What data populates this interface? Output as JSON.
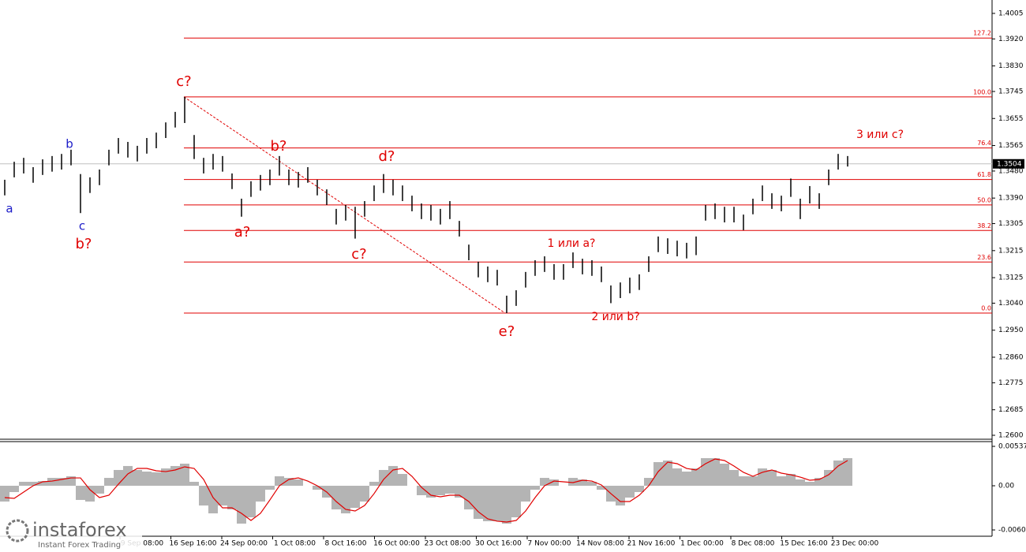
{
  "chart_data": [
    {
      "type": "ohlc",
      "high": [
        1.3451,
        1.3511,
        1.3524,
        1.3493,
        1.3519,
        1.353,
        1.3537,
        1.3551,
        1.347,
        1.3459,
        1.3485,
        1.3551,
        1.359,
        1.3577,
        1.3564,
        1.359,
        1.3608,
        1.3642,
        1.3677,
        1.3727,
        1.36,
        1.3524,
        1.3537,
        1.353,
        1.3472,
        1.3388,
        1.3446,
        1.3467,
        1.3485,
        1.353,
        1.3485,
        1.3477,
        1.3493,
        1.3451,
        1.3419,
        1.3354,
        1.3367,
        1.3361,
        1.338,
        1.3432,
        1.347,
        1.3451,
        1.3432,
        1.3398,
        1.3372,
        1.3367,
        1.3354,
        1.338,
        1.3314,
        1.3235,
        1.3178,
        1.3162,
        1.3151,
        1.3065,
        1.3083,
        1.3144,
        1.3183,
        1.3196,
        1.317,
        1.317,
        1.3209,
        1.3188,
        1.3183,
        1.3162,
        1.3099,
        1.3109,
        1.3125,
        1.3136,
        1.3196,
        1.3262,
        1.3256,
        1.3248,
        1.3241,
        1.3262,
        1.3367,
        1.3372,
        1.3361,
        1.3361,
        1.3335,
        1.3388,
        1.3432,
        1.3406,
        1.3398,
        1.3455,
        1.3388,
        1.343,
        1.3406,
        1.3485,
        1.3537,
        1.353
      ],
      "low": [
        1.3399,
        1.3459,
        1.3472,
        1.3441,
        1.3467,
        1.3478,
        1.3485,
        1.3499,
        1.334,
        1.3407,
        1.3433,
        1.3499,
        1.3538,
        1.3525,
        1.3512,
        1.3538,
        1.3556,
        1.359,
        1.3625,
        1.364,
        1.352,
        1.3472,
        1.3485,
        1.3478,
        1.342,
        1.3328,
        1.3394,
        1.3415,
        1.3433,
        1.3465,
        1.3433,
        1.3425,
        1.3441,
        1.3399,
        1.3367,
        1.3302,
        1.3315,
        1.3255,
        1.3328,
        1.338,
        1.3407,
        1.3399,
        1.338,
        1.3346,
        1.332,
        1.3315,
        1.3302,
        1.332,
        1.3262,
        1.3183,
        1.3126,
        1.311,
        1.3099,
        1.3007,
        1.3031,
        1.3092,
        1.3131,
        1.3144,
        1.3118,
        1.3118,
        1.3157,
        1.3136,
        1.3131,
        1.311,
        1.304,
        1.3057,
        1.3073,
        1.3084,
        1.3144,
        1.321,
        1.3204,
        1.3196,
        1.3189,
        1.32,
        1.3315,
        1.332,
        1.3309,
        1.3309,
        1.3283,
        1.3336,
        1.338,
        1.3354,
        1.3346,
        1.3394,
        1.332,
        1.3372,
        1.3354,
        1.3433,
        1.3485,
        1.3495
      ],
      "color": "#000000",
      "ylim": [
        1.25869,
        1.40496
      ],
      "yticks": [
        1.4005,
        {
          "value": 1.392,
          "label": "1.3920"
        },
        {
          "value": 1.383,
          "label": "1.3830"
        },
        1.3745,
        1.3655,
        1.3565,
        {
          "value": 1.348,
          "label": "1.3480"
        },
        {
          "value": 1.339,
          "label": "1.3390"
        },
        1.3305,
        1.3215,
        1.3125,
        {
          "value": 1.304,
          "label": "1.3040"
        },
        {
          "value": 1.295,
          "label": "1.2950"
        },
        {
          "value": 1.286,
          "label": "1.2860"
        },
        1.2775,
        1.2685,
        {
          "value": 1.26,
          "label": "1.2600"
        }
      ],
      "current_price": 1.3504,
      "fib_color": "#e00000",
      "fib_levels": [
        {
          "label": "127.2",
          "price": 1.3923
        },
        {
          "label": "100.0",
          "price": 1.3727
        },
        {
          "label": "76.4",
          "price": 1.3557
        },
        {
          "label": "61.8",
          "price": 1.3452
        },
        {
          "label": "50.0",
          "price": 1.3367
        },
        {
          "label": "38.2",
          "price": 1.3282
        },
        {
          "label": "23.6",
          "price": 1.3177
        },
        {
          "label": "0.0",
          "price": 1.3007
        }
      ],
      "annotations": [
        {
          "text": "a",
          "color": "#1c1cc8"
        },
        {
          "text": "b",
          "color": "#1c1cc8"
        },
        {
          "text": "c",
          "color": "#1c1cc8"
        },
        {
          "text": "b?",
          "color": "#e00000"
        },
        {
          "text": "c?",
          "color": "#e00000"
        },
        {
          "text": "b?",
          "color": "#e00000"
        },
        {
          "text": "a?",
          "color": "#e00000"
        },
        {
          "text": "d?",
          "color": "#e00000"
        },
        {
          "text": "c?",
          "color": "#e00000"
        },
        {
          "text": "e?",
          "color": "#e00000"
        },
        {
          "text": "1 или а?",
          "color": "#e00000"
        },
        {
          "text": "2 или b?",
          "color": "#e00000"
        },
        {
          "text": "3 или с?",
          "color": "#e00000"
        }
      ],
      "xaxis_labels": [
        "9 Sep 08:00",
        "16 Sep 16:00",
        "24 Sep 00:00",
        "1 Oct 08:00",
        "8 Oct 16:00",
        "16 Oct 00:00",
        "23 Oct 08:00",
        "30 Oct 16:00",
        "7 Nov 00:00",
        "14 Nov 08:00",
        "21 Nov 16:00",
        "1 Dec 00:00",
        "8 Dec 08:00",
        "15 Dec 16:00",
        "23 Dec 00:00"
      ],
      "watermark": {
        "brand": "instaforex",
        "tagline": "Instant Forex Trading"
      }
    },
    {
      "type": "macd",
      "histogram": [
        -0.00215,
        -0.00086,
        0.00054,
        0.00054,
        0.00064,
        0.00107,
        0.00107,
        0.00129,
        -0.00193,
        -0.00215,
        -0.00107,
        0.00107,
        0.00215,
        0.00269,
        0.00215,
        0.00193,
        0.00183,
        0.00236,
        0.00269,
        0.00301,
        0.00054,
        -0.00269,
        -0.00376,
        -0.00269,
        -0.00322,
        -0.00516,
        -0.0043,
        -0.00215,
        -0.00054,
        0.00129,
        0.00107,
        0.00086,
        0,
        -0.00054,
        -0.00161,
        -0.00322,
        -0.00376,
        -0.00301,
        -0.00215,
        0.00054,
        0.00215,
        0.00269,
        0.00161,
        0,
        -0.00129,
        -0.00161,
        -0.00129,
        -0.00107,
        -0.00161,
        -0.00322,
        -0.00451,
        -0.00483,
        -0.00483,
        -0.00516,
        -0.0043,
        -0.00215,
        -0.00054,
        0.00107,
        0.00086,
        0,
        0.00107,
        0.00086,
        0.00054,
        -0.00054,
        -0.00215,
        -0.00269,
        -0.00161,
        -0.00086,
        0.00107,
        0.00322,
        0.00344,
        0.00236,
        0.00193,
        0.00236,
        0.00376,
        0.00376,
        0.00301,
        0.00215,
        0.00129,
        0.00129,
        0.00236,
        0.00215,
        0.00129,
        0.00161,
        0.00086,
        0.00054,
        0.00107,
        0.00215,
        0.00344,
        0.00376
      ],
      "signal": [
        -0.00161,
        -0.00172,
        -0.00086,
        0,
        0.00054,
        0.00064,
        0.00086,
        0.00107,
        0.00107,
        -0.00054,
        -0.00161,
        -0.00129,
        0.00021,
        0.00161,
        0.00236,
        0.00236,
        0.00204,
        0.00193,
        0.00215,
        0.00258,
        0.00236,
        0.00086,
        -0.00161,
        -0.00301,
        -0.00301,
        -0.00376,
        -0.00473,
        -0.00376,
        -0.00193,
        0,
        0.00086,
        0.00107,
        0.00064,
        0,
        -0.00086,
        -0.00215,
        -0.00322,
        -0.00344,
        -0.00269,
        -0.00107,
        0.00086,
        0.00215,
        0.00236,
        0.00129,
        -0.00021,
        -0.00129,
        -0.0015,
        -0.00129,
        -0.00129,
        -0.00215,
        -0.00354,
        -0.00451,
        -0.00483,
        -0.00494,
        -0.00473,
        -0.00344,
        -0.00161,
        0,
        0.00064,
        0.00054,
        0.00043,
        0.00075,
        0.00064,
        0.00011,
        -0.00107,
        -0.00215,
        -0.00215,
        -0.00129,
        0,
        0.00193,
        0.00322,
        0.00301,
        0.00236,
        0.00215,
        0.00301,
        0.00365,
        0.00344,
        0.00269,
        0.00183,
        0.00129,
        0.00183,
        0.00215,
        0.00172,
        0.0015,
        0.00118,
        0.00075,
        0.00086,
        0.0015,
        0.00269,
        0.00344
      ],
      "histogram_color": "#b4b4b4",
      "signal_color": "#e00000",
      "ylim": [
        -0.00677,
        0.00591
      ],
      "yticks": [
        0.00537,
        {
          "value": 0,
          "label": "0.00"
        },
        -0.00602
      ]
    }
  ]
}
